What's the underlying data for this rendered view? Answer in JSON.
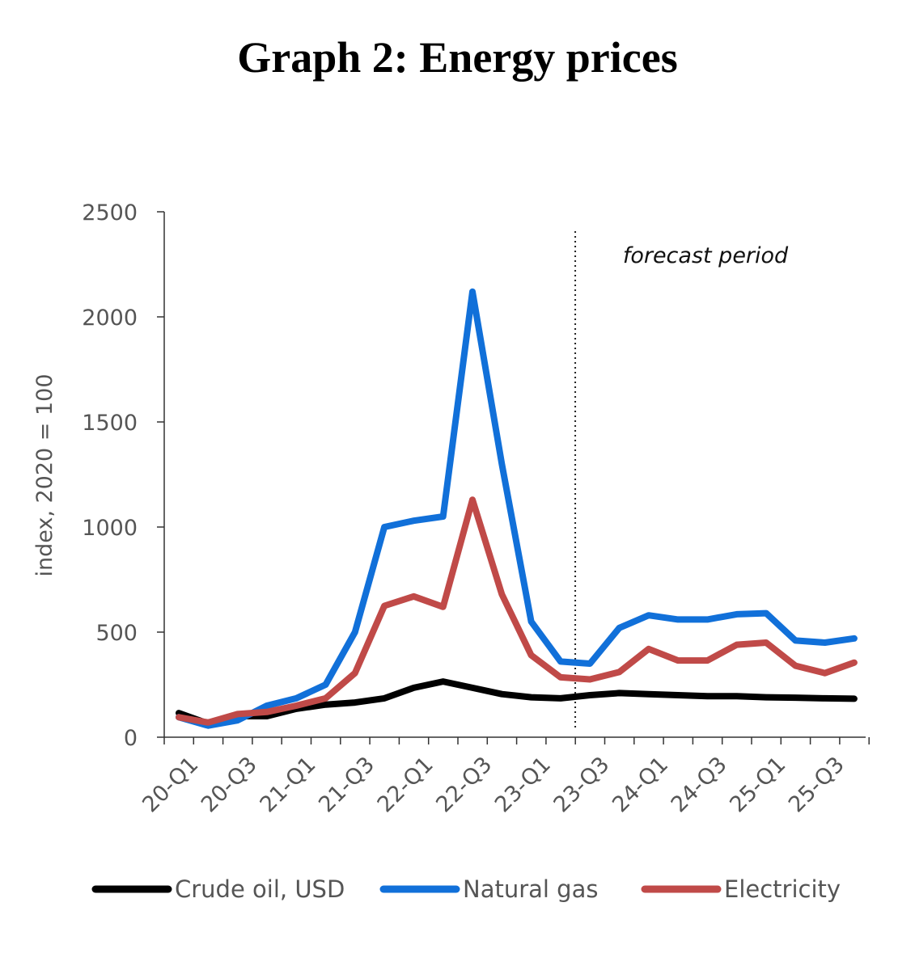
{
  "title": "Graph 2: Energy prices",
  "chart_data": {
    "type": "line",
    "ylabel": "index, 2020 = 100",
    "ylim": [
      0,
      2500
    ],
    "yticks": [
      0,
      500,
      1000,
      1500,
      2000,
      2500
    ],
    "x": [
      "20-Q1",
      "20-Q2",
      "20-Q3",
      "20-Q4",
      "21-Q1",
      "21-Q2",
      "21-Q3",
      "21-Q4",
      "22-Q1",
      "22-Q2",
      "22-Q3",
      "22-Q4",
      "23-Q1",
      "23-Q2",
      "23-Q3",
      "23-Q4",
      "24-Q1",
      "24-Q2",
      "24-Q3",
      "24-Q4",
      "25-Q1",
      "25-Q2",
      "25-Q3",
      "25-Q4"
    ],
    "xtick_labels": [
      "20-Q1",
      "20-Q3",
      "21-Q1",
      "21-Q3",
      "22-Q1",
      "22-Q3",
      "23-Q1",
      "23-Q3",
      "24-Q1",
      "24-Q3",
      "25-Q1",
      "25-Q3"
    ],
    "annotation": "forecast period",
    "forecast_start_after": "23-Q2",
    "series": [
      {
        "name": "Crude oil, USD",
        "color": "#000000",
        "values": [
          115,
          65,
          100,
          100,
          135,
          155,
          165,
          185,
          235,
          265,
          235,
          205,
          190,
          185,
          200,
          210,
          205,
          200,
          195,
          195,
          190,
          188,
          185,
          183
        ]
      },
      {
        "name": "Natural gas",
        "color": "#1170d9",
        "values": [
          95,
          55,
          80,
          150,
          185,
          250,
          500,
          1000,
          1030,
          1050,
          2120,
          1300,
          550,
          360,
          350,
          520,
          580,
          560,
          560,
          585,
          590,
          460,
          450,
          470
        ]
      },
      {
        "name": "Electricity",
        "color": "#c04a48",
        "values": [
          95,
          70,
          110,
          120,
          150,
          185,
          305,
          625,
          670,
          620,
          1130,
          680,
          390,
          285,
          275,
          310,
          420,
          365,
          365,
          440,
          450,
          340,
          305,
          355
        ]
      }
    ]
  }
}
